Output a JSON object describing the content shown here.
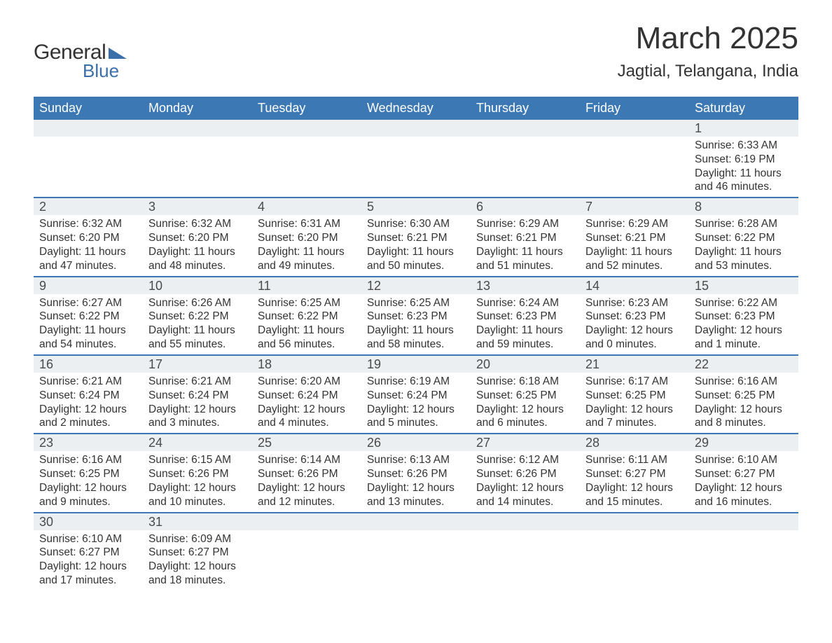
{
  "logo": {
    "word1": "General",
    "word2": "Blue",
    "flag_color": "#3b6faa"
  },
  "title": "March 2025",
  "location": "Jagtial, Telangana, India",
  "colors": {
    "header_bg": "#3c78b4",
    "header_text": "#ffffff",
    "row_divider": "#3c78b4",
    "daynum_bg": "#eceff1",
    "text": "#333333",
    "background": "#ffffff"
  },
  "weekdays": [
    "Sunday",
    "Monday",
    "Tuesday",
    "Wednesday",
    "Thursday",
    "Friday",
    "Saturday"
  ],
  "weeks": [
    [
      null,
      null,
      null,
      null,
      null,
      null,
      {
        "n": "1",
        "sunrise": "Sunrise: 6:33 AM",
        "sunset": "Sunset: 6:19 PM",
        "daylight": "Daylight: 11 hours and 46 minutes."
      }
    ],
    [
      {
        "n": "2",
        "sunrise": "Sunrise: 6:32 AM",
        "sunset": "Sunset: 6:20 PM",
        "daylight": "Daylight: 11 hours and 47 minutes."
      },
      {
        "n": "3",
        "sunrise": "Sunrise: 6:32 AM",
        "sunset": "Sunset: 6:20 PM",
        "daylight": "Daylight: 11 hours and 48 minutes."
      },
      {
        "n": "4",
        "sunrise": "Sunrise: 6:31 AM",
        "sunset": "Sunset: 6:20 PM",
        "daylight": "Daylight: 11 hours and 49 minutes."
      },
      {
        "n": "5",
        "sunrise": "Sunrise: 6:30 AM",
        "sunset": "Sunset: 6:21 PM",
        "daylight": "Daylight: 11 hours and 50 minutes."
      },
      {
        "n": "6",
        "sunrise": "Sunrise: 6:29 AM",
        "sunset": "Sunset: 6:21 PM",
        "daylight": "Daylight: 11 hours and 51 minutes."
      },
      {
        "n": "7",
        "sunrise": "Sunrise: 6:29 AM",
        "sunset": "Sunset: 6:21 PM",
        "daylight": "Daylight: 11 hours and 52 minutes."
      },
      {
        "n": "8",
        "sunrise": "Sunrise: 6:28 AM",
        "sunset": "Sunset: 6:22 PM",
        "daylight": "Daylight: 11 hours and 53 minutes."
      }
    ],
    [
      {
        "n": "9",
        "sunrise": "Sunrise: 6:27 AM",
        "sunset": "Sunset: 6:22 PM",
        "daylight": "Daylight: 11 hours and 54 minutes."
      },
      {
        "n": "10",
        "sunrise": "Sunrise: 6:26 AM",
        "sunset": "Sunset: 6:22 PM",
        "daylight": "Daylight: 11 hours and 55 minutes."
      },
      {
        "n": "11",
        "sunrise": "Sunrise: 6:25 AM",
        "sunset": "Sunset: 6:22 PM",
        "daylight": "Daylight: 11 hours and 56 minutes."
      },
      {
        "n": "12",
        "sunrise": "Sunrise: 6:25 AM",
        "sunset": "Sunset: 6:23 PM",
        "daylight": "Daylight: 11 hours and 58 minutes."
      },
      {
        "n": "13",
        "sunrise": "Sunrise: 6:24 AM",
        "sunset": "Sunset: 6:23 PM",
        "daylight": "Daylight: 11 hours and 59 minutes."
      },
      {
        "n": "14",
        "sunrise": "Sunrise: 6:23 AM",
        "sunset": "Sunset: 6:23 PM",
        "daylight": "Daylight: 12 hours and 0 minutes."
      },
      {
        "n": "15",
        "sunrise": "Sunrise: 6:22 AM",
        "sunset": "Sunset: 6:23 PM",
        "daylight": "Daylight: 12 hours and 1 minute."
      }
    ],
    [
      {
        "n": "16",
        "sunrise": "Sunrise: 6:21 AM",
        "sunset": "Sunset: 6:24 PM",
        "daylight": "Daylight: 12 hours and 2 minutes."
      },
      {
        "n": "17",
        "sunrise": "Sunrise: 6:21 AM",
        "sunset": "Sunset: 6:24 PM",
        "daylight": "Daylight: 12 hours and 3 minutes."
      },
      {
        "n": "18",
        "sunrise": "Sunrise: 6:20 AM",
        "sunset": "Sunset: 6:24 PM",
        "daylight": "Daylight: 12 hours and 4 minutes."
      },
      {
        "n": "19",
        "sunrise": "Sunrise: 6:19 AM",
        "sunset": "Sunset: 6:24 PM",
        "daylight": "Daylight: 12 hours and 5 minutes."
      },
      {
        "n": "20",
        "sunrise": "Sunrise: 6:18 AM",
        "sunset": "Sunset: 6:25 PM",
        "daylight": "Daylight: 12 hours and 6 minutes."
      },
      {
        "n": "21",
        "sunrise": "Sunrise: 6:17 AM",
        "sunset": "Sunset: 6:25 PM",
        "daylight": "Daylight: 12 hours and 7 minutes."
      },
      {
        "n": "22",
        "sunrise": "Sunrise: 6:16 AM",
        "sunset": "Sunset: 6:25 PM",
        "daylight": "Daylight: 12 hours and 8 minutes."
      }
    ],
    [
      {
        "n": "23",
        "sunrise": "Sunrise: 6:16 AM",
        "sunset": "Sunset: 6:25 PM",
        "daylight": "Daylight: 12 hours and 9 minutes."
      },
      {
        "n": "24",
        "sunrise": "Sunrise: 6:15 AM",
        "sunset": "Sunset: 6:26 PM",
        "daylight": "Daylight: 12 hours and 10 minutes."
      },
      {
        "n": "25",
        "sunrise": "Sunrise: 6:14 AM",
        "sunset": "Sunset: 6:26 PM",
        "daylight": "Daylight: 12 hours and 12 minutes."
      },
      {
        "n": "26",
        "sunrise": "Sunrise: 6:13 AM",
        "sunset": "Sunset: 6:26 PM",
        "daylight": "Daylight: 12 hours and 13 minutes."
      },
      {
        "n": "27",
        "sunrise": "Sunrise: 6:12 AM",
        "sunset": "Sunset: 6:26 PM",
        "daylight": "Daylight: 12 hours and 14 minutes."
      },
      {
        "n": "28",
        "sunrise": "Sunrise: 6:11 AM",
        "sunset": "Sunset: 6:27 PM",
        "daylight": "Daylight: 12 hours and 15 minutes."
      },
      {
        "n": "29",
        "sunrise": "Sunrise: 6:10 AM",
        "sunset": "Sunset: 6:27 PM",
        "daylight": "Daylight: 12 hours and 16 minutes."
      }
    ],
    [
      {
        "n": "30",
        "sunrise": "Sunrise: 6:10 AM",
        "sunset": "Sunset: 6:27 PM",
        "daylight": "Daylight: 12 hours and 17 minutes."
      },
      {
        "n": "31",
        "sunrise": "Sunrise: 6:09 AM",
        "sunset": "Sunset: 6:27 PM",
        "daylight": "Daylight: 12 hours and 18 minutes."
      },
      null,
      null,
      null,
      null,
      null
    ]
  ]
}
